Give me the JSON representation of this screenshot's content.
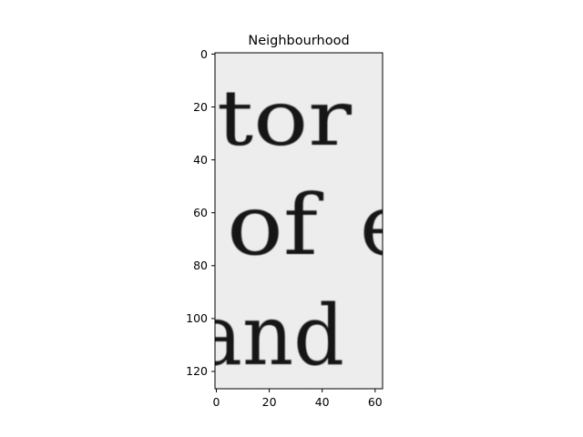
{
  "figure": {
    "title": "Neighbourhood",
    "image_content": [
      "tor",
      "of",
      "e",
      "and"
    ],
    "x_axis": {
      "ticks": [
        "0",
        "20",
        "40",
        "60"
      ],
      "range": [
        0,
        63
      ]
    },
    "y_axis": {
      "ticks": [
        "0",
        "20",
        "40",
        "60",
        "80",
        "100",
        "120"
      ],
      "range": [
        127,
        0
      ],
      "inverted": true
    },
    "colors": {
      "background": "#efefef",
      "ink": "#161616",
      "axes": "#000000"
    }
  }
}
